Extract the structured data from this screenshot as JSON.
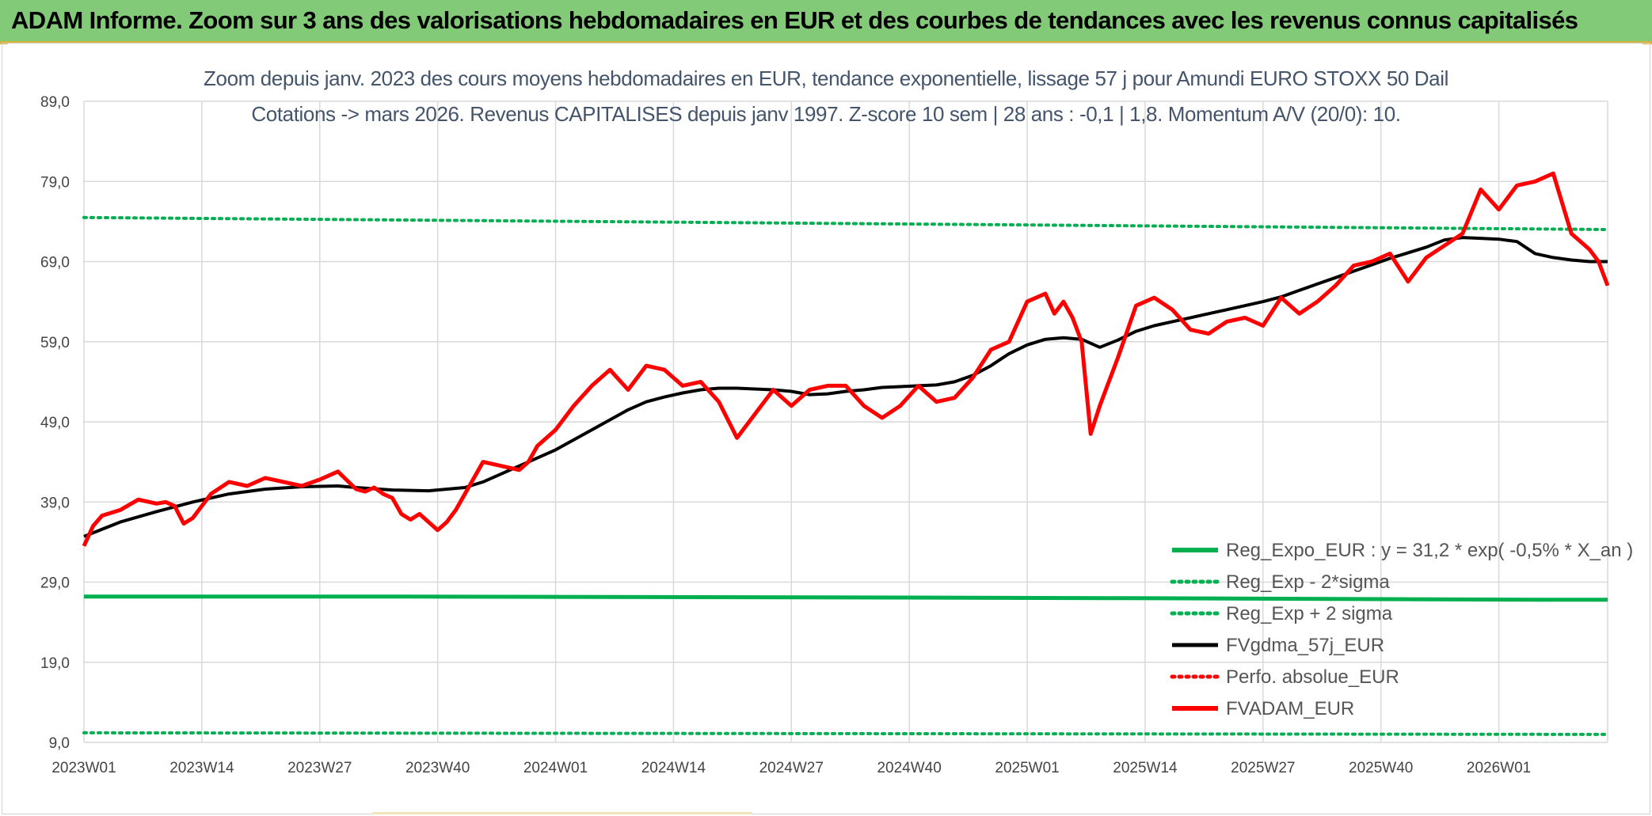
{
  "header": {
    "title": "ADAM Informe. Zoom sur 3 ans des valorisations hebdomadaires en EUR et des courbes de tendances avec les revenus connus capitalisés"
  },
  "chart_data": {
    "type": "line",
    "title_line1": "Zoom depuis janv. 2023 des cours moyens hebdomadaires en EUR, tendance exponentielle, lissage 57 j pour Amundi EURO STOXX 50 Dail",
    "title_line2": "Cotations -> mars 2026. Revenus CAPITALISES depuis janv 1997. Z-score 10 sem | 28 ans : -0,1 | 1,8. Momentum A/V (20/0): 10.",
    "ylim": [
      9,
      89
    ],
    "y_ticks": [
      "89,0",
      "79,0",
      "69,0",
      "59,0",
      "49,0",
      "39,0",
      "29,0",
      "19,0",
      "9,0"
    ],
    "x_ticks": [
      "2023W01",
      "2023W14",
      "2023W27",
      "2023W40",
      "2024W01",
      "2024W14",
      "2024W27",
      "2024W40",
      "2025W01",
      "2025W14",
      "2025W27",
      "2025W40",
      "2026W01"
    ],
    "x_range_weeks": [
      0,
      168
    ],
    "grid": true,
    "legend_position": "bottom-right",
    "series": [
      {
        "name": "Reg_Expo_EUR : y = 31,2 * exp( -0,5% *  X_an )",
        "color": "#00b050",
        "style": "solid-thick",
        "x": [
          0,
          35,
          80,
          115,
          161,
          168
        ],
        "values": [
          27.2,
          27.2,
          27.1,
          27.0,
          26.8,
          26.8
        ]
      },
      {
        "name": "Reg_Exp - 2*sigma",
        "color": "#00b050",
        "style": "dotted",
        "x": [
          0,
          168
        ],
        "values": [
          10.2,
          10.0
        ]
      },
      {
        "name": "Reg_Exp + 2 sigma",
        "color": "#00b050",
        "style": "dotted",
        "x": [
          0,
          168
        ],
        "values": [
          74.5,
          73.0
        ]
      },
      {
        "name": "FVgdma_57j_EUR",
        "color": "#000000",
        "style": "solid",
        "x": [
          0,
          4,
          8,
          12,
          16,
          20,
          24,
          28,
          30,
          34,
          38,
          42,
          44,
          46,
          48,
          50,
          52,
          56,
          60,
          62,
          64,
          66,
          68,
          70,
          72,
          74,
          76,
          78,
          80,
          82,
          84,
          86,
          88,
          90,
          92,
          94,
          96,
          98,
          100,
          102,
          104,
          106,
          108,
          110,
          112,
          114,
          116,
          118,
          120,
          122,
          124,
          126,
          128,
          130,
          132,
          134,
          136,
          138,
          140,
          142,
          144,
          146,
          148,
          150,
          152,
          154,
          156,
          158,
          160,
          162,
          164,
          166,
          168
        ],
        "values": [
          34.7,
          36.5,
          37.8,
          39.0,
          40.0,
          40.6,
          40.9,
          41.0,
          40.8,
          40.5,
          40.4,
          40.8,
          41.5,
          42.5,
          43.5,
          44.5,
          45.5,
          48.0,
          50.5,
          51.5,
          52.1,
          52.6,
          53.0,
          53.2,
          53.2,
          53.1,
          53.0,
          52.8,
          52.4,
          52.5,
          52.8,
          53.0,
          53.3,
          53.4,
          53.5,
          53.6,
          54.0,
          54.8,
          56.0,
          57.5,
          58.6,
          59.3,
          59.5,
          59.3,
          58.3,
          59.2,
          60.3,
          61.0,
          61.5,
          62.0,
          62.5,
          63.0,
          63.5,
          64.0,
          64.6,
          65.4,
          66.2,
          67.0,
          67.8,
          68.6,
          69.4,
          70.1,
          70.8,
          71.7,
          72.0,
          71.9,
          71.8,
          71.5,
          70.0,
          69.5,
          69.2,
          69.0,
          69.0
        ]
      },
      {
        "name": "Perfo. absolue_EUR",
        "color": "#ff0000",
        "style": "dotted",
        "x": [],
        "values": []
      },
      {
        "name": "FVADAM_EUR",
        "color": "#ff0000",
        "style": "solid-thick",
        "x": [
          0,
          1,
          2,
          4,
          6,
          8,
          9,
          10,
          11,
          12,
          13,
          14,
          16,
          18,
          20,
          22,
          24,
          26,
          28,
          30,
          31,
          32,
          33,
          34,
          35,
          36,
          37,
          38,
          39,
          40,
          41,
          42,
          44,
          46,
          48,
          49,
          50,
          52,
          54,
          56,
          58,
          60,
          62,
          64,
          66,
          68,
          70,
          72,
          74,
          76,
          78,
          80,
          82,
          84,
          86,
          88,
          90,
          92,
          94,
          96,
          98,
          100,
          102,
          104,
          106,
          107,
          108,
          109,
          110,
          111,
          112,
          113,
          114,
          116,
          118,
          120,
          122,
          124,
          126,
          128,
          130,
          132,
          134,
          136,
          138,
          140,
          142,
          144,
          146,
          148,
          150,
          152,
          154,
          156,
          158,
          160,
          162,
          164,
          166,
          167,
          168
        ],
        "values": [
          33.5,
          36.0,
          37.3,
          38.0,
          39.3,
          38.8,
          39.0,
          38.5,
          36.3,
          37.0,
          38.5,
          40.0,
          41.5,
          41.0,
          42.0,
          41.5,
          41.0,
          41.8,
          42.8,
          40.6,
          40.3,
          40.8,
          40.0,
          39.5,
          37.5,
          36.8,
          37.5,
          36.5,
          35.5,
          36.5,
          38.0,
          40.0,
          44.0,
          43.5,
          43.0,
          44.0,
          46.0,
          48.0,
          51.0,
          53.5,
          55.5,
          53.0,
          56.0,
          55.5,
          53.5,
          54.0,
          51.5,
          47.0,
          50.0,
          53.0,
          51.0,
          53.0,
          53.5,
          53.5,
          51.0,
          49.5,
          51.0,
          53.5,
          51.5,
          52.0,
          54.5,
          58.0,
          59.0,
          64.0,
          65.0,
          62.5,
          64.0,
          62.0,
          59.0,
          47.5,
          51.0,
          54.0,
          57.0,
          63.5,
          64.5,
          63.0,
          60.5,
          60.0,
          61.5,
          62.0,
          61.0,
          64.5,
          62.5,
          64.0,
          66.0,
          68.5,
          69.0,
          70.0,
          66.5,
          69.5,
          71.0,
          72.5,
          78.0,
          75.5,
          78.5,
          79.0,
          80.0,
          72.5,
          70.5,
          69.0,
          66.0
        ]
      }
    ]
  }
}
